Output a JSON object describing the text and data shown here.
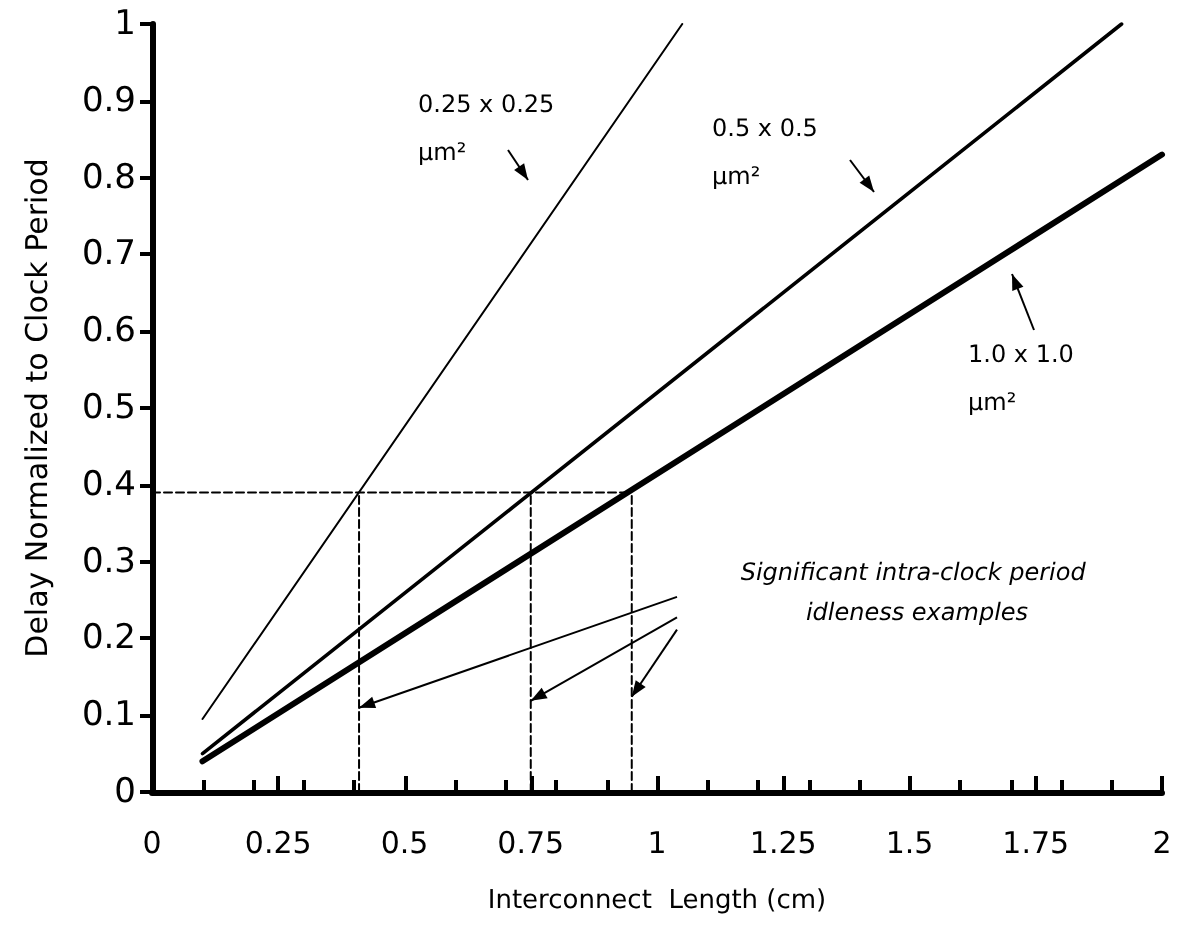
{
  "chart_data": {
    "type": "line",
    "xlabel": "Interconnect  Length (cm)",
    "ylabel": "Delay Normalized to Clock Period",
    "xlim": [
      0,
      2
    ],
    "ylim": [
      0,
      1
    ],
    "xticks": [
      0,
      0.25,
      0.5,
      0.75,
      1,
      1.25,
      1.5,
      1.75,
      2
    ],
    "yticks": [
      0,
      0.1,
      0.2,
      0.3,
      0.4,
      0.5,
      0.6,
      0.7,
      0.8,
      0.9,
      1
    ],
    "grid": false,
    "marker": "none",
    "series": [
      {
        "color": "#000000",
        "x": [
          0.1,
          1.05
        ],
        "values": [
          0.095,
          1.0
        ]
      },
      {
        "color": "#000000",
        "x": [
          0.1,
          1.92
        ],
        "values": [
          0.05,
          1.0
        ]
      },
      {
        "color": "#000000",
        "x": [
          0.1,
          2
        ],
        "values": [
          0.04,
          0.83
        ]
      },
      {
        "color": "#000000",
        "line_style": "dashed",
        "x": [
          0,
          0.95
        ],
        "values": [
          0.39,
          0.39
        ]
      },
      {
        "color": "#000000",
        "line_style": "dashed",
        "x": [
          0.41,
          0.41
        ],
        "values": [
          0,
          0.39
        ]
      },
      {
        "color": "#000000",
        "line_style": "dashed",
        "x": [
          0.75,
          0.75
        ],
        "values": [
          0,
          0.39
        ]
      },
      {
        "color": "#000000",
        "line_style": "dashed",
        "x": [
          0.95,
          0.95
        ],
        "values": [
          0,
          0.39
        ]
      }
    ],
    "annotations": [
      "0.25 x 0.25 µm²",
      "0.5 x 0.5 µm²",
      "1.0 x 1.0 µm²",
      "Significant intra-clock period idleness examples"
    ]
  }
}
